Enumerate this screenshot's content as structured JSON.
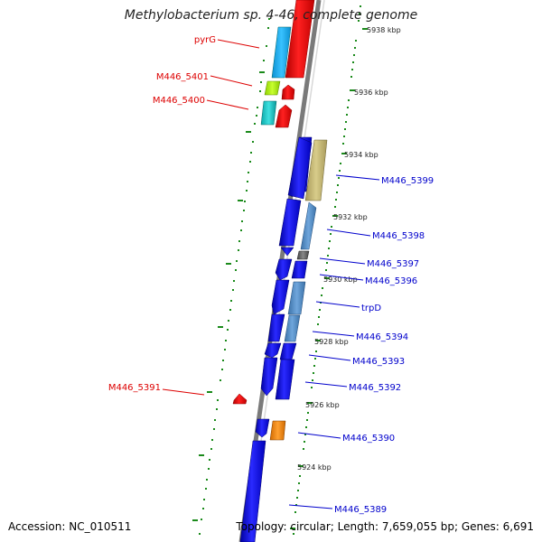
{
  "title": "Methylobacterium sp. 4-46, complete genome",
  "accession": "Accession: NC_010511",
  "topology": "Topology: circular; Length: 7,659,055 bp; Genes: 6,691",
  "colors": {
    "backbone": "#8c8c8c",
    "forward_label": "#0000cc",
    "reverse_label": "#dd0000",
    "ruler": "#1a8a1a"
  },
  "ruler": {
    "ticks": [
      "5938 kbp",
      "5936 kbp",
      "5934 kbp",
      "5932 kbp",
      "5930 kbp",
      "5928 kbp",
      "5926 kbp",
      "5924 kbp"
    ]
  },
  "genes_reverse": [
    {
      "label": "pyrG",
      "icon": "red-arrow"
    },
    {
      "label": "M446_5401",
      "icon": "red-arrow"
    },
    {
      "label": "M446_5400",
      "icon": "red-arrow"
    },
    {
      "label": "M446_5391",
      "icon": "red-arrow"
    }
  ],
  "genes_forward": [
    {
      "label": "M446_5399",
      "icon": "blue-arrow"
    },
    {
      "label": "M446_5398",
      "icon": "blue-arrow"
    },
    {
      "label": "M446_5397",
      "icon": "blue-arrow"
    },
    {
      "label": "M446_5396",
      "icon": "blue-arrow"
    },
    {
      "label": "trpD",
      "icon": "blue-arrow"
    },
    {
      "label": "M446_5394",
      "icon": "blue-arrow"
    },
    {
      "label": "M446_5393",
      "icon": "blue-arrow"
    },
    {
      "label": "M446_5392",
      "icon": "blue-arrow"
    },
    {
      "label": "M446_5390",
      "icon": "blue-arrow"
    },
    {
      "label": "M446_5389",
      "icon": "blue-arrow"
    }
  ]
}
